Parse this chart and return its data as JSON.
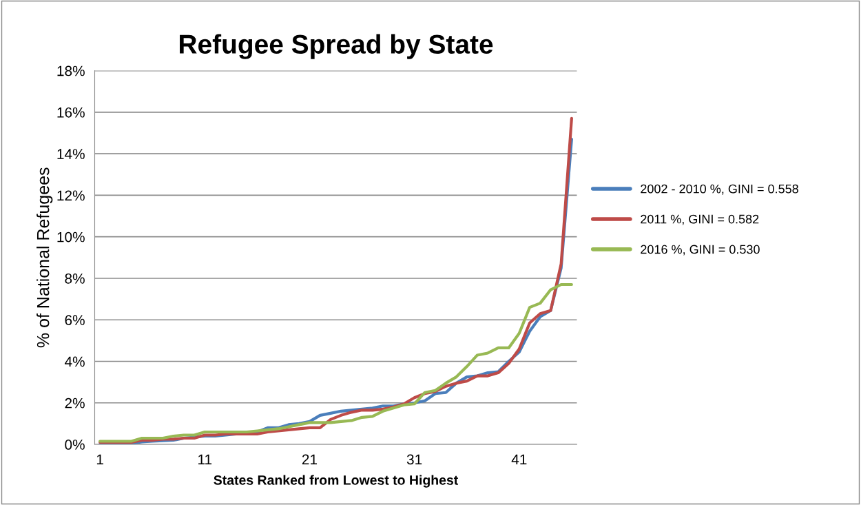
{
  "chart_data": {
    "type": "line",
    "title": "Refugee Spread by State",
    "xlabel": "States Ranked from Lowest to Highest",
    "ylabel": "% of National Refugees",
    "x": [
      1,
      2,
      3,
      4,
      5,
      6,
      7,
      8,
      9,
      10,
      11,
      12,
      13,
      14,
      15,
      16,
      17,
      18,
      19,
      20,
      21,
      22,
      23,
      24,
      25,
      26,
      27,
      28,
      29,
      30,
      31,
      32,
      33,
      34,
      35,
      36,
      37,
      38,
      39,
      40,
      41,
      42,
      43,
      44,
      45,
      46
    ],
    "xlim": [
      0.5,
      46.5
    ],
    "xticks": [
      1,
      11,
      21,
      31,
      41
    ],
    "ylim": [
      0,
      18
    ],
    "yticks": [
      {
        "value": 0,
        "label": "0%"
      },
      {
        "value": 2,
        "label": "2%"
      },
      {
        "value": 4,
        "label": "4%"
      },
      {
        "value": 6,
        "label": "6%"
      },
      {
        "value": 8,
        "label": "8%"
      },
      {
        "value": 10,
        "label": "10%"
      },
      {
        "value": 12,
        "label": "12%"
      },
      {
        "value": 14,
        "label": "14%"
      },
      {
        "value": 16,
        "label": "16%"
      },
      {
        "value": 18,
        "label": "18%"
      }
    ],
    "grid": "y",
    "legend": "right",
    "marker": "none",
    "line_style": "solid",
    "series": [
      {
        "name": "2002 - 2010 %, GINI = 0.558",
        "color": "#4a7ebb",
        "values": [
          0.0,
          0.0,
          0.02,
          0.05,
          0.12,
          0.15,
          0.18,
          0.2,
          0.3,
          0.35,
          0.4,
          0.4,
          0.45,
          0.5,
          0.55,
          0.6,
          0.8,
          0.8,
          0.95,
          1.0,
          1.1,
          1.4,
          1.5,
          1.6,
          1.65,
          1.7,
          1.75,
          1.85,
          1.85,
          1.95,
          2.0,
          2.1,
          2.45,
          2.5,
          2.95,
          3.25,
          3.3,
          3.45,
          3.5,
          4.0,
          4.45,
          5.45,
          6.15,
          6.45,
          8.5,
          14.7
        ]
      },
      {
        "name": "2011 %, GINI = 0.582",
        "color": "#be4b48",
        "values": [
          0.1,
          0.1,
          0.1,
          0.1,
          0.2,
          0.2,
          0.25,
          0.25,
          0.3,
          0.3,
          0.45,
          0.45,
          0.5,
          0.5,
          0.5,
          0.5,
          0.6,
          0.65,
          0.7,
          0.75,
          0.8,
          0.8,
          1.2,
          1.4,
          1.55,
          1.65,
          1.65,
          1.7,
          1.8,
          1.95,
          2.25,
          2.45,
          2.55,
          2.8,
          2.95,
          3.05,
          3.3,
          3.3,
          3.45,
          3.9,
          4.6,
          5.85,
          6.3,
          6.45,
          8.7,
          15.7
        ]
      },
      {
        "name": "2016 %, GINI = 0.530",
        "color": "#98b954",
        "values": [
          0.15,
          0.15,
          0.15,
          0.15,
          0.3,
          0.3,
          0.3,
          0.4,
          0.45,
          0.45,
          0.6,
          0.6,
          0.6,
          0.6,
          0.6,
          0.65,
          0.7,
          0.75,
          0.85,
          0.95,
          1.05,
          1.05,
          1.05,
          1.1,
          1.15,
          1.3,
          1.35,
          1.6,
          1.75,
          1.9,
          1.95,
          2.5,
          2.6,
          2.95,
          3.25,
          3.75,
          4.3,
          4.4,
          4.65,
          4.65,
          5.35,
          6.6,
          6.8,
          7.45,
          7.7,
          7.7
        ]
      }
    ]
  }
}
